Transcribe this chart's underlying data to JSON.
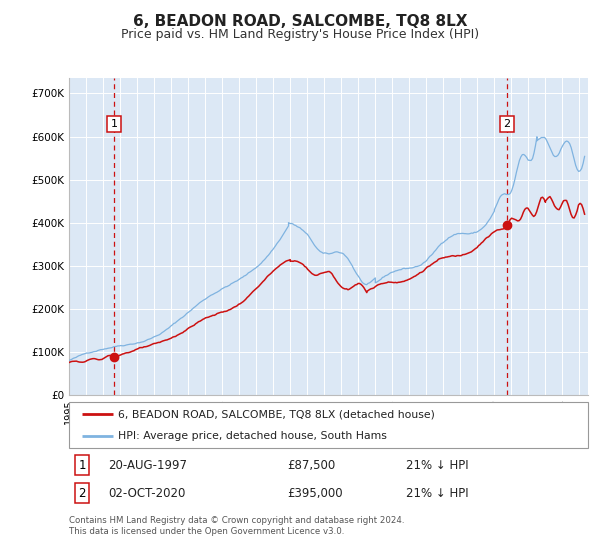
{
  "title": "6, BEADON ROAD, SALCOMBE, TQ8 8LX",
  "subtitle": "Price paid vs. HM Land Registry's House Price Index (HPI)",
  "title_fontsize": 11,
  "subtitle_fontsize": 9,
  "bg_color": "#ffffff",
  "plot_bg_color": "#dce8f5",
  "grid_color": "#ffffff",
  "hpi_line_color": "#7fb3e0",
  "price_line_color": "#cc1111",
  "vline_color": "#cc1111",
  "sale1_date_num": 1997.64,
  "sale1_price": 87500,
  "sale1_label": "1",
  "sale1_text": "20-AUG-1997",
  "sale1_price_text": "£87,500",
  "sale1_hpi_text": "21% ↓ HPI",
  "sale2_date_num": 2020.75,
  "sale2_price": 395000,
  "sale2_label": "2",
  "sale2_text": "02-OCT-2020",
  "sale2_price_text": "£395,000",
  "sale2_hpi_text": "21% ↓ HPI",
  "xlim_left": 1995.0,
  "xlim_right": 2025.5,
  "ylim_bottom": 0,
  "ylim_top": 735000,
  "legend_label_price": "6, BEADON ROAD, SALCOMBE, TQ8 8LX (detached house)",
  "legend_label_hpi": "HPI: Average price, detached house, South Hams",
  "footer_text": "Contains HM Land Registry data © Crown copyright and database right 2024.\nThis data is licensed under the Open Government Licence v3.0.",
  "yticks": [
    0,
    100000,
    200000,
    300000,
    400000,
    500000,
    600000,
    700000
  ],
  "ytick_labels": [
    "£0",
    "£100K",
    "£200K",
    "£300K",
    "£400K",
    "£500K",
    "£600K",
    "£700K"
  ]
}
